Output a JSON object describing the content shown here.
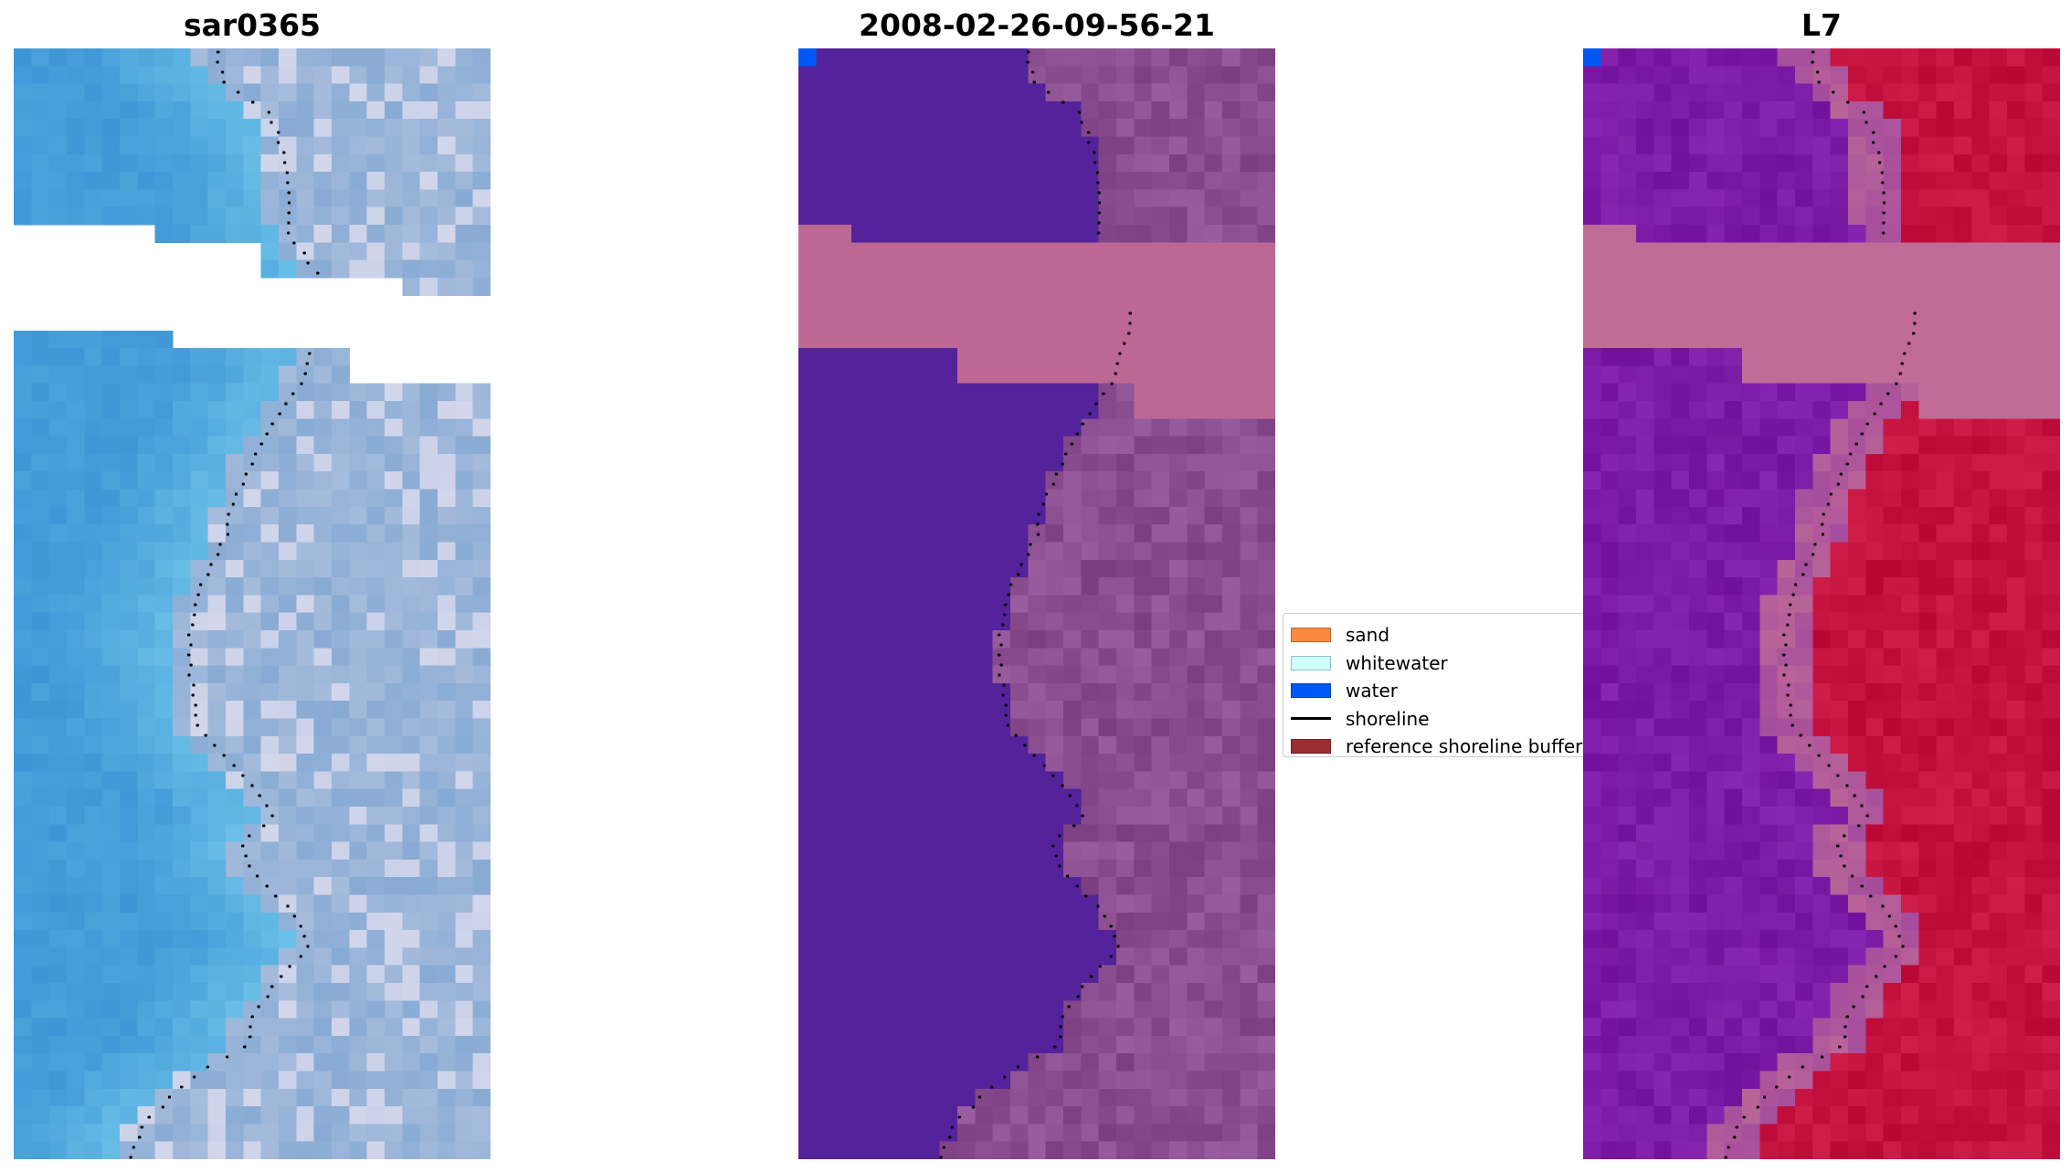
{
  "panels": {
    "rgb": {
      "title": "sar0365"
    },
    "classified": {
      "title": "2008-02-26-09-56-21"
    },
    "index": {
      "title": "L7"
    }
  },
  "legend": {
    "items": [
      {
        "label": "sand",
        "color": "#f98a3f",
        "kind": "patch"
      },
      {
        "label": "whitewater",
        "color": "#ccfdfb",
        "kind": "patch"
      },
      {
        "label": "water",
        "color": "#0059f2",
        "kind": "patch"
      },
      {
        "label": "shoreline",
        "color": "#000000",
        "kind": "line"
      },
      {
        "label": "reference shoreline buffer",
        "color": "#9a2c33",
        "kind": "patch"
      }
    ]
  },
  "colors": {
    "background": "#ffffff",
    "classified_land": "#8a4d8f",
    "classified_water_body": "#54229b",
    "classified_nodata_band": "#bd6894",
    "index_water": "#7e1ba6",
    "index_land": "#c4123e",
    "index_nodata_band": "#c06c97",
    "water_pixel": "#0059f2",
    "rgb_sea": "#3e96d6",
    "rgb_beach": "#a6bcdc",
    "shoreline_dots": "#000000"
  }
}
